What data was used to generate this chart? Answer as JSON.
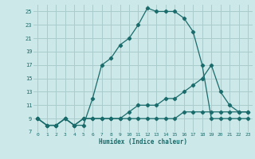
{
  "xlabel": "Humidex (Indice chaleur)",
  "bg_color": "#cce8e8",
  "grid_color": "#aacccc",
  "line_color": "#1a6b6b",
  "xlim": [
    -0.5,
    23.5
  ],
  "ylim": [
    7,
    26
  ],
  "xticks": [
    0,
    1,
    2,
    3,
    4,
    5,
    6,
    7,
    8,
    9,
    10,
    11,
    12,
    13,
    14,
    15,
    16,
    17,
    18,
    19,
    20,
    21,
    22,
    23
  ],
  "yticks": [
    7,
    9,
    11,
    13,
    15,
    17,
    19,
    21,
    23,
    25
  ],
  "curve1_x": [
    0,
    1,
    2,
    3,
    4,
    5,
    6,
    7,
    8,
    9,
    10,
    11,
    12,
    13,
    14,
    15,
    16,
    17,
    18,
    19,
    20,
    21,
    22,
    23
  ],
  "curve1_y": [
    9,
    8,
    8,
    9,
    8,
    8,
    12,
    17,
    18,
    20,
    21,
    23,
    25.5,
    25,
    25,
    25,
    24,
    22,
    17,
    9,
    9,
    9,
    9,
    9
  ],
  "curve2_x": [
    0,
    1,
    2,
    3,
    4,
    5,
    6,
    7,
    8,
    9,
    10,
    11,
    12,
    13,
    14,
    15,
    16,
    17,
    18,
    19,
    20,
    21,
    22,
    23
  ],
  "curve2_y": [
    9,
    8,
    8,
    9,
    8,
    9,
    9,
    9,
    9,
    9,
    10,
    11,
    11,
    11,
    12,
    12,
    13,
    14,
    15,
    17,
    13,
    11,
    10,
    10
  ],
  "curve3_x": [
    0,
    1,
    2,
    3,
    4,
    5,
    6,
    7,
    8,
    9,
    10,
    11,
    12,
    13,
    14,
    15,
    16,
    17,
    18,
    19,
    20,
    21,
    22,
    23
  ],
  "curve3_y": [
    9,
    8,
    8,
    9,
    8,
    9,
    9,
    9,
    9,
    9,
    9,
    9,
    9,
    9,
    9,
    9,
    10,
    10,
    10,
    10,
    10,
    10,
    10,
    10
  ]
}
